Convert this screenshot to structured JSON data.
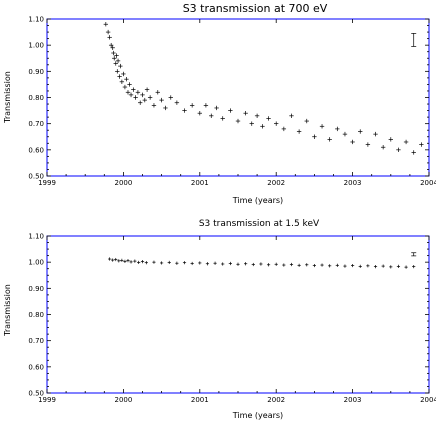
{
  "chart_data": [
    {
      "type": "scatter",
      "title": "S3 transmission at 700 eV",
      "xlabel": "Time (years)",
      "ylabel": "Transmission",
      "xlim": [
        1999,
        2004
      ],
      "ylim": [
        0.5,
        1.1
      ],
      "xticks": [
        "1999",
        "2000",
        "2001",
        "2002",
        "2003",
        "2004"
      ],
      "yticks": [
        "0.50",
        "0.60",
        "0.70",
        "0.80",
        "0.90",
        "1.00",
        "1.10"
      ],
      "grid": false,
      "marker": "plus",
      "error_bar_example": {
        "x": 2003.8,
        "y": 1.02,
        "half_height": 0.025
      },
      "series": [
        {
          "x": [
            1999.77,
            1999.8,
            1999.82,
            1999.84,
            1999.86,
            1999.87,
            1999.88,
            1999.9,
            1999.91,
            1999.92,
            1999.93,
            1999.95,
            1999.96,
            1999.98,
            2000.0,
            2000.02,
            2000.04,
            2000.06,
            2000.08,
            2000.1,
            2000.13,
            2000.16,
            2000.19,
            2000.22,
            2000.25,
            2000.28,
            2000.31,
            2000.35,
            2000.4,
            2000.45,
            2000.5,
            2000.55,
            2000.62,
            2000.7,
            2000.8,
            2000.9,
            2001.0,
            2001.08,
            2001.15,
            2001.22,
            2001.3,
            2001.4,
            2001.5,
            2001.6,
            2001.68,
            2001.75,
            2001.82,
            2001.9,
            2002.0,
            2002.1,
            2002.2,
            2002.3,
            2002.4,
            2002.5,
            2002.6,
            2002.7,
            2002.8,
            2002.9,
            2003.0,
            2003.1,
            2003.2,
            2003.3,
            2003.4,
            2003.5,
            2003.6,
            2003.7,
            2003.8,
            2003.9
          ],
          "y": [
            1.08,
            1.05,
            1.03,
            1.0,
            0.99,
            0.97,
            0.95,
            0.93,
            0.96,
            0.9,
            0.94,
            0.88,
            0.92,
            0.86,
            0.89,
            0.84,
            0.87,
            0.82,
            0.85,
            0.81,
            0.83,
            0.8,
            0.82,
            0.78,
            0.81,
            0.79,
            0.83,
            0.8,
            0.77,
            0.82,
            0.79,
            0.76,
            0.8,
            0.78,
            0.75,
            0.77,
            0.74,
            0.77,
            0.73,
            0.76,
            0.72,
            0.75,
            0.71,
            0.74,
            0.7,
            0.73,
            0.69,
            0.72,
            0.7,
            0.68,
            0.73,
            0.67,
            0.71,
            0.65,
            0.69,
            0.64,
            0.68,
            0.66,
            0.63,
            0.67,
            0.62,
            0.66,
            0.61,
            0.64,
            0.6,
            0.63,
            0.59,
            0.62
          ]
        }
      ]
    },
    {
      "type": "scatter",
      "title": "S3 transmission at 1.5 keV",
      "xlabel": "Time (years)",
      "ylabel": "Transmission",
      "xlim": [
        1999,
        2004
      ],
      "ylim": [
        0.5,
        1.1
      ],
      "xticks": [
        "1999",
        "2000",
        "2001",
        "2002",
        "2003",
        "2004"
      ],
      "yticks": [
        "0.50",
        "0.60",
        "0.70",
        "0.80",
        "0.90",
        "1.00",
        "1.10"
      ],
      "grid": false,
      "marker": "plus",
      "error_bar_example": {
        "x": 2003.8,
        "y": 1.03,
        "half_height": 0.006
      },
      "series": [
        {
          "x": [
            1999.82,
            1999.86,
            1999.9,
            1999.94,
            1999.98,
            2000.02,
            2000.06,
            2000.1,
            2000.15,
            2000.2,
            2000.25,
            2000.3,
            2000.4,
            2000.5,
            2000.6,
            2000.7,
            2000.8,
            2000.9,
            2001.0,
            2001.1,
            2001.2,
            2001.3,
            2001.4,
            2001.5,
            2001.6,
            2001.7,
            2001.8,
            2001.9,
            2002.0,
            2002.1,
            2002.2,
            2002.3,
            2002.4,
            2002.5,
            2002.6,
            2002.7,
            2002.8,
            2002.9,
            2003.0,
            2003.1,
            2003.2,
            2003.3,
            2003.4,
            2003.5,
            2003.6,
            2003.7,
            2003.8
          ],
          "y": [
            1.012,
            1.008,
            1.01,
            1.005,
            1.007,
            1.003,
            1.006,
            1.001,
            1.004,
            0.999,
            1.002,
            0.998,
            1.0,
            0.997,
            0.999,
            0.996,
            0.998,
            0.995,
            0.997,
            0.994,
            0.996,
            0.993,
            0.995,
            0.992,
            0.994,
            0.991,
            0.993,
            0.99,
            0.992,
            0.989,
            0.991,
            0.988,
            0.99,
            0.987,
            0.989,
            0.986,
            0.988,
            0.985,
            0.987,
            0.984,
            0.986,
            0.983,
            0.985,
            0.982,
            0.984,
            0.981,
            0.983
          ]
        }
      ]
    }
  ]
}
